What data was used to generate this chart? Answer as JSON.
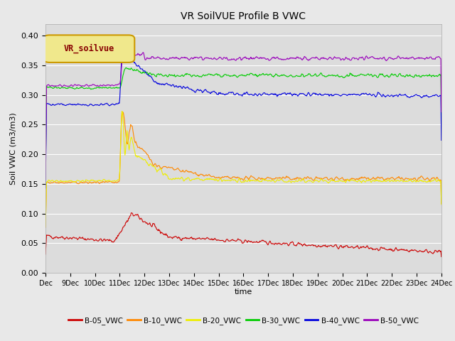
{
  "title": "VR SoilVUE Profile B VWC",
  "xlabel": "time",
  "ylabel": "Soil VWC (m3/m3)",
  "ylim": [
    0.0,
    0.42
  ],
  "yticks": [
    0.0,
    0.05,
    0.1,
    0.15,
    0.2,
    0.25,
    0.3,
    0.35,
    0.4
  ],
  "background_color": "#e8e8e8",
  "axes_bg_color": "#dcdcdc",
  "legend_label": "VR_soilvue",
  "series_colors": {
    "B-05_VWC": "#cc0000",
    "B-10_VWC": "#ff8800",
    "B-20_VWC": "#eeee00",
    "B-30_VWC": "#00cc00",
    "B-40_VWC": "#0000dd",
    "B-50_VWC": "#9900bb"
  },
  "series_lw": 0.8
}
